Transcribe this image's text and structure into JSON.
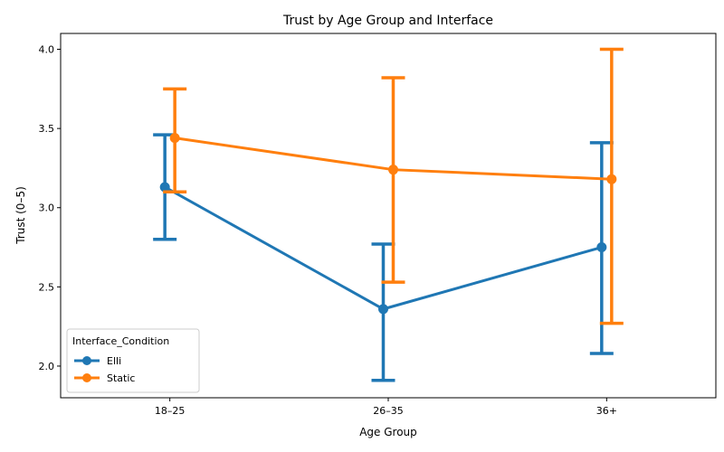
{
  "chart_data": {
    "type": "line",
    "title": "Trust by Age Group and Interface",
    "xlabel": "Age Group",
    "ylabel": "Trust (0–5)",
    "categories": [
      "18–25",
      "26–35",
      "36+"
    ],
    "ylim": [
      1.8,
      4.1
    ],
    "yticks": [
      "2.0",
      "2.5",
      "3.0",
      "3.5",
      "4.0"
    ],
    "grid": false,
    "legend": {
      "title": "Interface_Condition",
      "placement": "lower-left"
    },
    "series": [
      {
        "name": "Elli",
        "color": "#1f77b4",
        "values": [
          3.13,
          2.36,
          2.75
        ],
        "ci_low": [
          2.8,
          1.91,
          2.08
        ],
        "ci_high": [
          3.46,
          2.77,
          3.41
        ]
      },
      {
        "name": "Static",
        "color": "#ff7f0e",
        "values": [
          3.44,
          3.24,
          3.18
        ],
        "ci_low": [
          3.1,
          2.53,
          2.27
        ],
        "ci_high": [
          3.75,
          3.82,
          4.0
        ]
      }
    ]
  }
}
